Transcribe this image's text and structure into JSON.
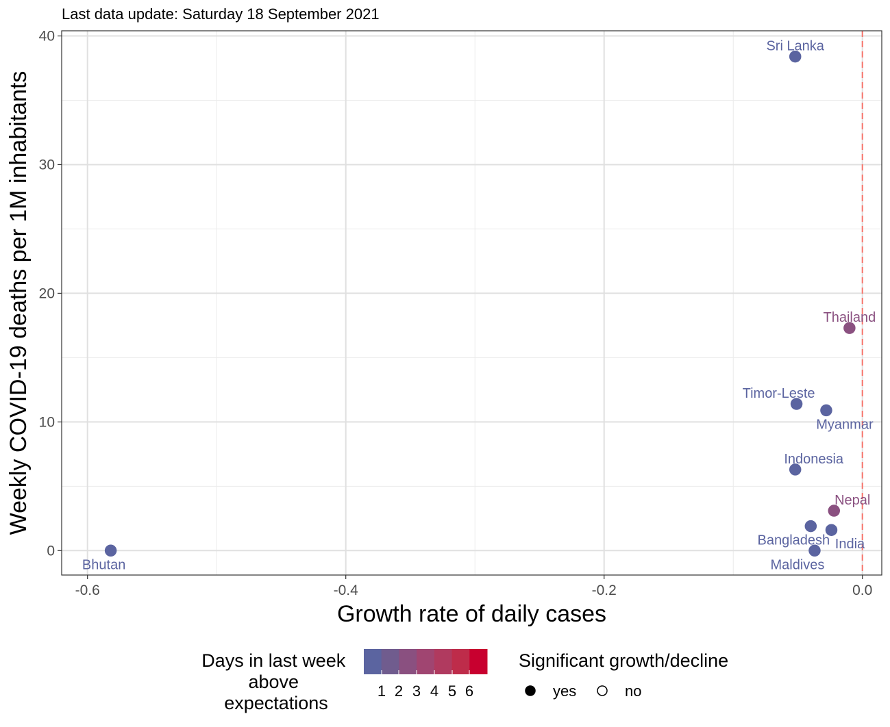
{
  "subtitle": "Last data update: Saturday 18 September 2021",
  "chart_data": {
    "type": "scatter",
    "title": "",
    "subtitle": "Last data update: Saturday 18 September 2021",
    "xlabel": "Growth rate of daily cases",
    "ylabel": "Weekly COVID-19 deaths per 1M inhabitants",
    "xlim": [
      -0.62,
      0.015
    ],
    "ylim": [
      -1.9,
      40.4
    ],
    "x_ticks": [
      -0.6,
      -0.4,
      -0.2,
      0.0
    ],
    "x_tick_labels": [
      "-0.6",
      "-0.4",
      "-0.2",
      "0.0"
    ],
    "y_ticks": [
      0,
      10,
      20,
      30,
      40
    ],
    "y_tick_labels": [
      "0",
      "10",
      "20",
      "30",
      "40"
    ],
    "grid": true,
    "reference_line": {
      "x": 0.0,
      "style": "dashed",
      "color": "#f8766d"
    },
    "points": [
      {
        "label": "Sri Lanka",
        "x": -0.052,
        "y": 38.4,
        "days_above": 0,
        "significant": "yes",
        "label_pos": "above"
      },
      {
        "label": "Thailand",
        "x": -0.01,
        "y": 17.3,
        "days_above": 2,
        "significant": "yes",
        "label_pos": "above"
      },
      {
        "label": "Timor-Leste",
        "x": -0.051,
        "y": 11.4,
        "days_above": 0,
        "significant": "yes",
        "label_pos": "above-left"
      },
      {
        "label": "Myanmar",
        "x": -0.028,
        "y": 10.9,
        "days_above": 0,
        "significant": "yes",
        "label_pos": "below-right"
      },
      {
        "label": "Indonesia",
        "x": -0.052,
        "y": 6.3,
        "days_above": 0,
        "significant": "yes",
        "label_pos": "above-right"
      },
      {
        "label": "Nepal",
        "x": -0.022,
        "y": 3.1,
        "days_above": 2,
        "significant": "yes",
        "label_pos": "above-right"
      },
      {
        "label": "Bangladesh",
        "x": -0.04,
        "y": 1.9,
        "days_above": 0,
        "significant": "yes",
        "label_pos": "below-left"
      },
      {
        "label": "India",
        "x": -0.024,
        "y": 1.6,
        "days_above": 0,
        "significant": "yes",
        "label_pos": "below-right"
      },
      {
        "label": "Maldives",
        "x": -0.037,
        "y": 0.0,
        "days_above": 0,
        "significant": "yes",
        "label_pos": "below-left"
      },
      {
        "label": "Bhutan",
        "x": -0.582,
        "y": 0.0,
        "days_above": 0,
        "significant": "yes",
        "label_pos": "below"
      }
    ],
    "color_scale": {
      "title": "Days in last week above expectations",
      "title_lines": [
        "Days in last week",
        "above",
        "expectations"
      ],
      "low_color": "#5b64a0",
      "high_color": "#c8002f",
      "ticks": [
        "1",
        "2",
        "3",
        "4",
        "5",
        "6"
      ],
      "steps": [
        "#5b64a0",
        "#705c8e",
        "#8a5080",
        "#a04571",
        "#b03a5f",
        "#be2c4a",
        "#c8002f"
      ]
    },
    "shape_legend": {
      "title": "Significant growth/decline",
      "items": [
        {
          "label": "yes",
          "filled": true
        },
        {
          "label": "no",
          "filled": false
        }
      ]
    }
  }
}
